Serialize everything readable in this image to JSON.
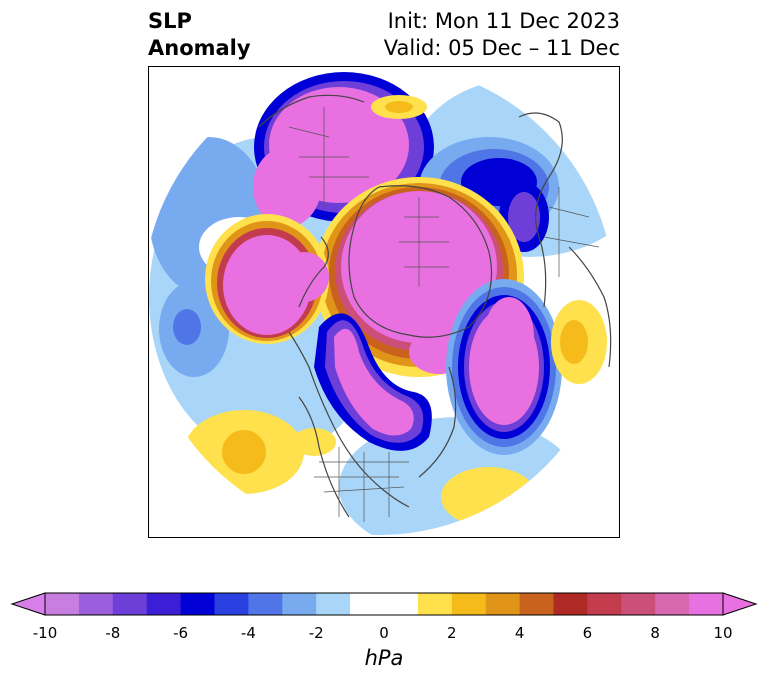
{
  "header": {
    "title_line1": "SLP",
    "title_line2": "Anomaly",
    "init_text": "Init: Mon 11 Dec 2023",
    "valid_text": "Valid: 05 Dec – 11 Dec"
  },
  "colorbar": {
    "unit_label": "hPa",
    "ticks": [
      "-10",
      "-8",
      "-6",
      "-4",
      "-2",
      "0",
      "2",
      "4",
      "6",
      "8",
      "10"
    ],
    "bins": [
      "#c77ee0",
      "#9b5fdd",
      "#6e3fd8",
      "#3b1ed6",
      "#0000d6",
      "#2a3fe0",
      "#4f75e6",
      "#78aaf0",
      "#a9d6f8",
      "#ffffff",
      "#ffffff",
      "#ffe14d",
      "#f5bb1a",
      "#e09418",
      "#c9621c",
      "#b02a25",
      "#c23c4d",
      "#cc4f7a",
      "#d868b0",
      "#e870e0"
    ],
    "under_color": "#d77ee8",
    "over_color": "#e870e0"
  }
}
